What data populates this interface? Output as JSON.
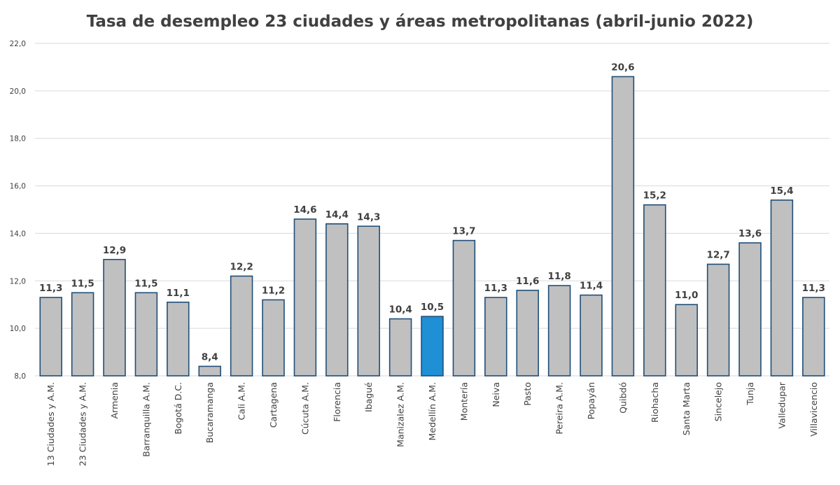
{
  "chart_data": {
    "type": "bar",
    "title": "Tasa de desempleo 23 ciudades y áreas metropolitanas (abril-junio 2022)",
    "xlabel": "",
    "ylabel": "",
    "ylim": [
      8.0,
      22.0
    ],
    "yticks": [
      8.0,
      10.0,
      12.0,
      14.0,
      16.0,
      18.0,
      20.0,
      22.0
    ],
    "ytick_labels": [
      "8,0",
      "10,0",
      "12,0",
      "14,0",
      "16,0",
      "18,0",
      "20,0",
      "22,0"
    ],
    "grid": true,
    "legend": "none",
    "bar_color": "#c0c0c0",
    "bar_edge_color": "#1f4e79",
    "highlight_color": "#1f8fd6",
    "highlight_category": "Medellín A.M.",
    "categories": [
      "13 Ciudades y A.M.",
      "23 Ciudades y A.M.",
      "Armenia",
      "Barranquilla A.M.",
      "Bogotá D.C.",
      "Bucaramanga",
      "Cali A.M.",
      "Cartagena",
      "Cúcuta A.M.",
      "Florencia",
      "Ibagué",
      "Manizalez A.M.",
      "Medellín A.M.",
      "Montería",
      "Neiva",
      "Pasto",
      "Pereira A.M.",
      "Popayán",
      "Quibdó",
      "Riohacha",
      "Santa Marta",
      "Sincelejo",
      "Tunja",
      "Valledupar",
      "Villavicencio"
    ],
    "values": [
      11.3,
      11.5,
      12.9,
      11.5,
      11.1,
      8.4,
      12.2,
      11.2,
      14.6,
      14.4,
      14.3,
      10.4,
      10.5,
      13.7,
      11.3,
      11.6,
      11.8,
      11.4,
      20.6,
      15.2,
      11.0,
      12.7,
      13.6,
      15.4,
      11.3
    ],
    "value_labels": [
      "11,3",
      "11,5",
      "12,9",
      "11,5",
      "11,1",
      "8,4",
      "12,2",
      "11,2",
      "14,6",
      "14,4",
      "14,3",
      "10,4",
      "10,5",
      "13,7",
      "11,3",
      "11,6",
      "11,8",
      "11,4",
      "20,6",
      "15,2",
      "11,0",
      "12,7",
      "13,6",
      "15,4",
      "11,3"
    ]
  }
}
